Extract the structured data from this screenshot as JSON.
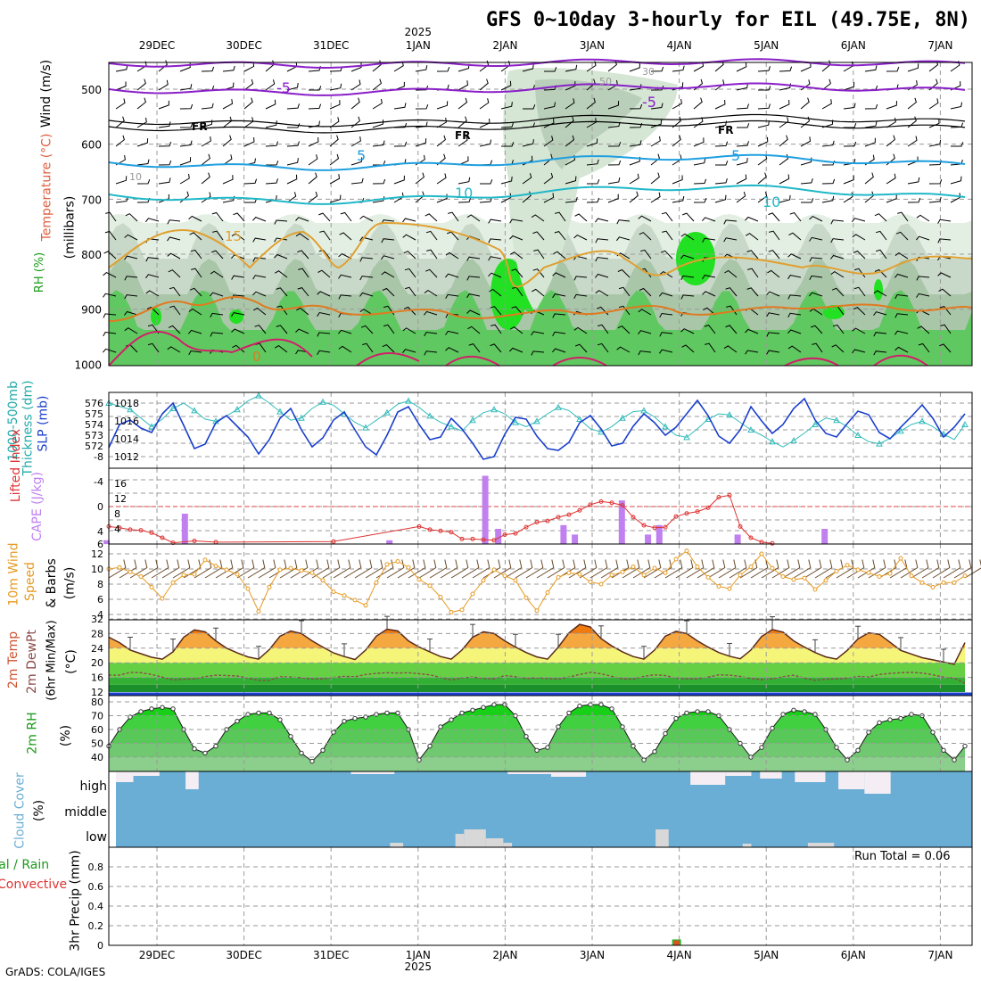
{
  "title": "GFS 0~10day 3-hourly for EIL (49.75E, 8N)",
  "credit": "GrADS: COLA/IGES",
  "dates": [
    "29DEC",
    "30DEC",
    "31DEC",
    "1JAN",
    "2JAN",
    "3JAN",
    "4JAN",
    "5JAN",
    "6JAN",
    "7JAN"
  ],
  "year_label": "2025",
  "run_total": "Run Total = 0.06",
  "labels": {
    "p1_wind": "Wind (m/s)",
    "p1_temp": "Temperature (°C)",
    "p1_rh": "RH (%)",
    "p1_mb": "(millibars)",
    "p2_thk": "1000-500mb",
    "p2_thk2": "Thickness (dm)",
    "p2_slp": "SLP (mb)",
    "p3_li": "Lifted Index",
    "p3_cape": "CAPE (J/kg)",
    "p4_a": "10m Wind",
    "p4_b": "Speed",
    "p4_c": "& Barbs",
    "p4_d": "(m/s)",
    "p5_a": "2m Temp",
    "p5_b": "2m DewPt",
    "p5_c": "(6hr Min/Max)",
    "p5_d": "(°C)",
    "p6_a": "2m RH",
    "p6_b": "(%)",
    "p7_a": "Cloud Cover",
    "p7_b": "(%)",
    "p8_a": "Total / Rain",
    "p8_b": "Convective",
    "p8_c": "3hr Precip (mm)"
  },
  "colors": {
    "slp": "#1a3fcc",
    "thickness": "#33bbbb",
    "lifted_index": "#dd3333",
    "cape": "#c080f0",
    "wind_speed": "#e69a22",
    "temp_fill": "#f09a20",
    "dew": "#8b4a4a",
    "rh_green": "#22cc22",
    "cloud_blue": "#6aaed6"
  },
  "chart_data": [
    {
      "type": "contour",
      "name": "upper-air",
      "y_axis": "pressure (mb)",
      "yticks": [
        500,
        600,
        700,
        800,
        900,
        1000
      ],
      "contour_labels": [
        "-5",
        "FR",
        "5",
        "10",
        "15",
        "0",
        "10",
        "30",
        "50"
      ]
    },
    {
      "type": "line",
      "series": [
        {
          "name": "SLP (mb)",
          "axis": "right",
          "yticks": [
            1012,
            1014,
            1016,
            1018
          ],
          "values": [
            1013.0,
            1015.6,
            1016.1,
            1015.2,
            1014.7,
            1016.8,
            1018.0,
            1015.5,
            1012.9,
            1013.4,
            1015.8,
            1016.6,
            1015.4,
            1014.2,
            1012.3,
            1013.9,
            1016.3,
            1017.4,
            1015.0,
            1013.1,
            1014.1,
            1016.1,
            1017.0,
            1015.0,
            1013.1,
            1012.2,
            1014.4,
            1017.0,
            1017.6,
            1015.6,
            1013.9,
            1014.2,
            1016.3,
            1015.1,
            1013.5,
            1011.7,
            1012.0,
            1014.5,
            1016.4,
            1016.2,
            1014.3,
            1012.9,
            1012.7,
            1013.6,
            1015.8,
            1016.6,
            1015.1,
            1013.2,
            1013.5,
            1015.4,
            1016.8,
            1015.8,
            1014.4,
            1015.3,
            1016.8,
            1018.3,
            1016.6,
            1014.3,
            1013.5,
            1015.0,
            1017.6,
            1016.0,
            1014.6,
            1015.6,
            1017.4,
            1018.5,
            1016.1,
            1014.6,
            1014.2,
            1015.7,
            1017.1,
            1016.7,
            1014.7,
            1014.0,
            1015.3,
            1016.5,
            1017.8,
            1016.3,
            1014.2,
            1015.3,
            1016.8
          ]
        },
        {
          "name": "1000-500mb Thickness (dm)",
          "axis": "left",
          "yticks": [
            572,
            573,
            574,
            575,
            576
          ],
          "values": [
            576.0,
            575.7,
            575.4,
            574.6,
            573.8,
            574.5,
            575.5,
            576.0,
            575.3,
            574.5,
            574.3,
            574.8,
            575.4,
            576.2,
            576.7,
            576.0,
            575.2,
            574.4,
            574.6,
            575.5,
            576.1,
            575.8,
            575.0,
            574.2,
            573.7,
            574.4,
            575.1,
            575.9,
            576.2,
            575.6,
            574.8,
            574.2,
            573.8,
            573.4,
            574.4,
            575.1,
            575.4,
            575.0,
            574.2,
            573.8,
            574.3,
            575.0,
            575.6,
            575.3,
            574.5,
            573.6,
            573.3,
            573.8,
            574.6,
            575.2,
            575.3,
            574.7,
            573.8,
            573.0,
            572.8,
            573.6,
            574.5,
            575.0,
            574.9,
            574.2,
            573.5,
            573.0,
            572.4,
            571.9,
            572.5,
            573.2,
            574.0,
            574.6,
            574.4,
            573.8,
            573.0,
            572.4,
            572.2,
            572.7,
            573.4,
            574.0,
            574.3,
            573.8,
            573.1,
            572.6,
            574.0
          ]
        }
      ]
    },
    {
      "type": "bar",
      "name": "CAPE and Lifted Index",
      "cape_ticks": [
        4,
        8,
        12,
        16
      ],
      "li_ticks": [
        6,
        4,
        0,
        -4,
        -8
      ],
      "cape_bars": [
        {
          "x": 0.0,
          "v": 1
        },
        {
          "x": 0.9,
          "v": 8
        },
        {
          "x": 3.25,
          "v": 1
        },
        {
          "x": 4.35,
          "v": 18
        },
        {
          "x": 4.5,
          "v": 4
        },
        {
          "x": 5.25,
          "v": 5
        },
        {
          "x": 5.38,
          "v": 2.5
        },
        {
          "x": 5.92,
          "v": 11.5
        },
        {
          "x": 6.22,
          "v": 2.5
        },
        {
          "x": 6.35,
          "v": 5
        },
        {
          "x": 7.25,
          "v": 2.5
        },
        {
          "x": 8.25,
          "v": 4
        }
      ],
      "lifted_index": [
        3.2,
        3.4,
        3.7,
        3.8,
        4.2,
        5,
        5.8,
        6.2,
        5.5,
        6,
        5.7,
        6.3,
        6.4,
        6.5,
        6.5,
        6.4,
        6,
        6.4,
        6.6,
        6.5,
        6.3,
        5.6,
        6.1,
        6.2,
        6.4,
        6.2,
        6.3,
        6.1,
        6.4,
        3.2,
        3.7,
        3.9,
        4.1,
        5.2,
        5.2,
        5.3,
        5.4,
        4.5,
        4.3,
        3.3,
        2.5,
        2.3,
        1.7,
        1.3,
        0.6,
        -0.3,
        -0.8,
        -0.6,
        -0.2,
        1.7,
        3.0,
        3.4,
        3.3,
        1.6,
        1.1,
        0.8,
        0.2,
        -1.5,
        -1.8,
        3.2,
        5,
        5.7,
        5.9,
        6,
        6.2,
        6.3,
        6.2,
        6.3,
        6.4,
        6.4,
        6.2,
        6.3,
        6.3,
        6.3,
        6.1,
        6.2,
        6.3,
        6,
        6.3,
        6.3,
        6.2
      ]
    },
    {
      "type": "line",
      "name": "10m Wind Speed",
      "yticks": [
        4,
        6,
        8,
        10,
        12
      ],
      "values": [
        10.0,
        10.2,
        9.6,
        9.0,
        7.6,
        6.1,
        8.2,
        9.2,
        9.3,
        11.2,
        10.4,
        9.9,
        9.3,
        7.4,
        4.4,
        7.6,
        9.9,
        10.1,
        9.8,
        9.5,
        8.5,
        7.0,
        6.5,
        5.9,
        5.2,
        8.2,
        10.6,
        11.0,
        10.2,
        8.6,
        7.8,
        6.3,
        4.3,
        4.6,
        6.7,
        8.5,
        9.9,
        9.1,
        8.5,
        6.2,
        4.5,
        6.9,
        8.9,
        9.5,
        9.3,
        8.3,
        8.0,
        9.2,
        9.6,
        10.3,
        9.2,
        10.1,
        9.5,
        11.3,
        12.4,
        10.3,
        8.9,
        7.7,
        7.4,
        9.2,
        10.3,
        12.0,
        10.1,
        9.0,
        8.6,
        8.8,
        7.3,
        8.5,
        9.7,
        10.5,
        9.9,
        9.5,
        9.0,
        9.4,
        11.4,
        9.1,
        8.2,
        7.6,
        8.2,
        8.2,
        9.1
      ]
    },
    {
      "type": "area",
      "name": "2m Temperature",
      "yticks": [
        12,
        16,
        20,
        24,
        28,
        32
      ],
      "temp_values": [
        27,
        25.5,
        23.5,
        22.5,
        21.5,
        21,
        23,
        27,
        29,
        28.5,
        26,
        24,
        22.7,
        21.6,
        21,
        23.6,
        27.3,
        28.7,
        28,
        26,
        24.3,
        22.7,
        21.7,
        20.9,
        23.5,
        27.3,
        29.2,
        28.7,
        26,
        24.3,
        23,
        21.7,
        21,
        23.5,
        27,
        28.5,
        28,
        26,
        24.3,
        22.8,
        21.6,
        21,
        24.3,
        28.2,
        30.5,
        29.8,
        26.6,
        24.6,
        23,
        21.7,
        21,
        23.5,
        27.3,
        28.6,
        28,
        26,
        24.3,
        22.8,
        21.8,
        21.1,
        23.5,
        27.2,
        29.1,
        28.4,
        26,
        24.3,
        22.8,
        21.6,
        21,
        23.4,
        26.5,
        28.2,
        27.8,
        25.6,
        23.4,
        22.4,
        21.4,
        20.8,
        20.2,
        19.6,
        25.5
      ],
      "dew_values": [
        16.6,
        16.6,
        17.4,
        17.3,
        16.8,
        16.1,
        15.3,
        15.5,
        15.6,
        16.2,
        16.6,
        16.5,
        16.4,
        15.8,
        15.2,
        15.2,
        16.2,
        16.1,
        15.9,
        15.6,
        15.6,
        16,
        16.3,
        16.2,
        16.8,
        17.1,
        17.3,
        17.2,
        17.3,
        17,
        16.7,
        16,
        15.3,
        15.9,
        16.1,
        15.7,
        15.6,
        16.5,
        16.2,
        15.7,
        15.9,
        15.7,
        15.5,
        16.1,
        16.8,
        17.4,
        17,
        16.3,
        15.6,
        15.5,
        16.3,
        16.7,
        16.5,
        15.8,
        15.6,
        15.6,
        16.1,
        16.7,
        16.6,
        16.3,
        15.7,
        15.4,
        15.6,
        16.2,
        16.6,
        15.8,
        15.2,
        15.5,
        15.6,
        15.8,
        16.3,
        16.1,
        16.8,
        17.1,
        17.3,
        17.4,
        17.2,
        16.7,
        16.1,
        15.8,
        14.4
      ]
    },
    {
      "type": "area",
      "name": "2m RH",
      "yticks": [
        40,
        50,
        60,
        70,
        80
      ],
      "values": [
        48,
        60,
        69,
        73,
        75,
        76,
        75,
        60,
        46,
        43,
        48,
        60,
        66,
        71,
        72,
        72,
        67,
        55,
        43,
        37,
        45,
        58,
        66,
        68,
        69,
        71,
        72,
        72,
        60,
        38,
        48,
        62,
        67,
        72,
        74,
        76,
        78,
        78,
        70,
        55,
        45,
        47,
        62,
        72,
        77,
        78,
        78,
        75,
        62,
        48,
        38,
        44,
        57,
        68,
        72,
        73,
        73,
        70,
        60,
        50,
        40,
        47,
        61,
        71,
        74,
        73,
        71,
        60,
        47,
        38,
        45,
        58,
        65,
        67,
        68,
        71,
        70,
        58,
        45,
        38,
        48
      ]
    },
    {
      "type": "bar",
      "name": "Cloud Cover",
      "rows": [
        "high",
        "middle",
        "low"
      ],
      "high_bars": [
        {
          "x": 0.0,
          "w": 0.2,
          "v": 12
        },
        {
          "x": 0.2,
          "w": 0.3,
          "v": 5
        },
        {
          "x": 0.8,
          "w": 0.15,
          "v": 20
        },
        {
          "x": 2.7,
          "w": 0.5,
          "v": 3
        },
        {
          "x": 4.5,
          "w": 0.5,
          "v": 3
        },
        {
          "x": 5.0,
          "w": 0.4,
          "v": 6
        },
        {
          "x": 6.6,
          "w": 0.4,
          "v": 15
        },
        {
          "x": 7.0,
          "w": 0.3,
          "v": 5
        },
        {
          "x": 7.4,
          "w": 0.25,
          "v": 8
        },
        {
          "x": 7.8,
          "w": 0.35,
          "v": 12
        },
        {
          "x": 8.3,
          "w": 0.3,
          "v": 20
        },
        {
          "x": 8.6,
          "w": 0.3,
          "v": 25
        }
      ],
      "low_bars": [
        {
          "x": 3.15,
          "w": 0.15,
          "v": 5
        },
        {
          "x": 3.9,
          "w": 0.1,
          "v": 15
        },
        {
          "x": 4.0,
          "w": 0.25,
          "v": 20
        },
        {
          "x": 4.25,
          "w": 0.2,
          "v": 10
        },
        {
          "x": 4.45,
          "w": 0.1,
          "v": 5
        },
        {
          "x": 6.2,
          "w": 0.15,
          "v": 20
        },
        {
          "x": 7.2,
          "w": 0.1,
          "v": 4
        },
        {
          "x": 7.95,
          "w": 0.3,
          "v": 5
        }
      ]
    },
    {
      "type": "bar",
      "name": "3hr Precip",
      "yticks": [
        0,
        0.2,
        0.4,
        0.6,
        0.8
      ],
      "bars": [
        {
          "x": 5.97,
          "total": 0.06,
          "convective": 0.05
        }
      ]
    }
  ]
}
